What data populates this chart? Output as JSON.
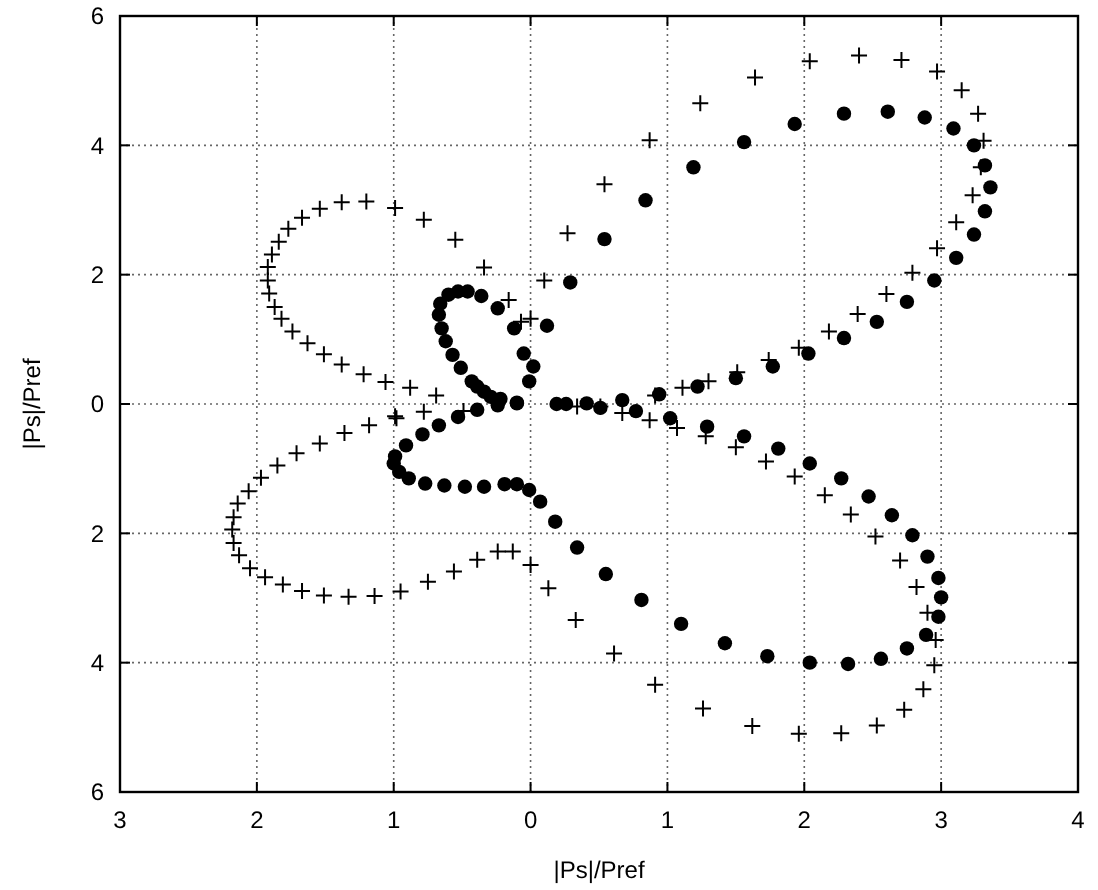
{
  "chart_data": {
    "type": "scatter",
    "xlabel": "|Ps|/Pref",
    "ylabel": "|Ps|/Pref",
    "xlim": [
      -3,
      4
    ],
    "ylim": [
      -6,
      6
    ],
    "xticks": [
      {
        "value": -3,
        "label": "3"
      },
      {
        "value": -2,
        "label": "2"
      },
      {
        "value": -1,
        "label": "1"
      },
      0,
      1,
      2,
      3,
      4
    ],
    "yticks": [
      {
        "value": -6,
        "label": "6"
      },
      {
        "value": -4,
        "label": "4"
      },
      {
        "value": -2,
        "label": "2"
      },
      0,
      2,
      4,
      6
    ],
    "grid": true,
    "series": [
      {
        "color": "#000000",
        "marker": "cross",
        "x": [
          -0.49,
          -0.69,
          -0.88,
          -1.06,
          -1.22,
          -1.38,
          -1.51,
          -1.63,
          -1.74,
          -1.82,
          -1.87,
          -1.91,
          -1.92,
          -1.92,
          -1.89,
          -1.84,
          -1.77,
          -1.67,
          -1.54,
          -1.38,
          -1.2,
          -0.99,
          -0.78,
          -0.55,
          -0.34,
          -0.16,
          0,
          0.1,
          -0.99,
          -0.78,
          -0.98,
          -1.18,
          -1.36,
          -1.54,
          -1.71,
          -1.85,
          -1.97,
          -2.06,
          -2.14,
          -2.17,
          -2.18,
          -2.17,
          -2.13,
          -2.05,
          -1.94,
          -1.81,
          -1.67,
          -1.51,
          -1.33,
          -1.14,
          -0.95,
          -0.75,
          -0.56,
          -0.39,
          -0.24,
          -0.13,
          0,
          0.13,
          -0.07,
          0.27,
          0.54,
          0.87,
          1.24,
          1.64,
          2.04,
          2.4,
          2.71,
          2.97,
          3.15,
          3.27,
          3.31,
          3.29,
          3.23,
          3.11,
          2.97,
          2.79,
          2.6,
          2.39,
          2.18,
          1.96,
          1.74,
          1.51,
          1.3,
          1.11,
          0.91,
          0.34,
          0.51,
          0.67,
          0.87,
          1.07,
          1.28,
          1.5,
          1.72,
          1.93,
          2.15,
          2.34,
          2.52,
          2.7,
          2.82,
          2.9,
          2.96,
          2.95,
          2.87,
          2.73,
          2.53,
          2.27,
          1.96,
          1.62,
          1.26,
          0.91,
          0.61,
          0.33
        ],
        "values": [
          -0.11,
          0.13,
          0.25,
          0.34,
          0.46,
          0.61,
          0.77,
          0.94,
          1.12,
          1.32,
          1.5,
          1.71,
          1.91,
          2.12,
          2.31,
          2.51,
          2.71,
          2.88,
          3.02,
          3.12,
          3.13,
          3.03,
          2.85,
          2.54,
          2.11,
          1.61,
          1.32,
          1.91,
          -0.19,
          -0.12,
          -0.22,
          -0.33,
          -0.45,
          -0.61,
          -0.76,
          -0.95,
          -1.14,
          -1.35,
          -1.54,
          -1.75,
          -1.94,
          -2.15,
          -2.34,
          -2.54,
          -2.68,
          -2.79,
          -2.89,
          -2.96,
          -2.98,
          -2.97,
          -2.9,
          -2.75,
          -2.59,
          -2.41,
          -2.28,
          -2.28,
          -2.49,
          -2.85,
          1.27,
          2.64,
          3.4,
          4.08,
          4.65,
          5.05,
          5.3,
          5.39,
          5.32,
          5.14,
          4.85,
          4.49,
          4.07,
          3.66,
          3.23,
          2.81,
          2.41,
          2.03,
          1.7,
          1.39,
          1.12,
          0.87,
          0.68,
          0.49,
          0.35,
          0.25,
          0.13,
          -0.04,
          -0.04,
          -0.14,
          -0.25,
          -0.37,
          -0.5,
          -0.67,
          -0.89,
          -1.12,
          -1.41,
          -1.71,
          -2.05,
          -2.42,
          -2.83,
          -3.23,
          -3.65,
          -4.04,
          -4.41,
          -4.73,
          -4.97,
          -5.09,
          -5.1,
          -4.98,
          -4.71,
          -4.34,
          -3.86,
          -3.34
        ]
      },
      {
        "color": "#000000",
        "marker": "circle",
        "x": [
          -0.1,
          -0.22,
          -0.29,
          -0.34,
          -0.39,
          -0.43,
          -0.51,
          -0.57,
          -0.62,
          -0.65,
          -0.67,
          -0.66,
          -0.6,
          -0.53,
          -0.46,
          -0.36,
          -0.24,
          -0.12,
          -0.05,
          0.02,
          -0.01,
          0.12,
          -0.1,
          -0.24,
          -0.39,
          -0.53,
          -0.67,
          -0.79,
          -0.91,
          -0.99,
          -1,
          -0.96,
          -0.89,
          -0.77,
          -0.63,
          -0.48,
          -0.34,
          -0.19,
          -0.1,
          -0.01,
          0.07,
          0.29,
          0.54,
          0.84,
          1.19,
          1.56,
          1.93,
          2.29,
          2.61,
          2.88,
          3.09,
          3.24,
          3.32,
          3.36,
          3.32,
          3.24,
          3.11,
          2.95,
          2.75,
          2.53,
          2.29,
          2.03,
          1.77,
          1.5,
          1.22,
          0.94,
          0.67,
          0.41,
          0.26,
          0.19,
          0.51,
          0.77,
          1.02,
          1.29,
          1.56,
          1.81,
          2.04,
          2.27,
          2.47,
          2.64,
          2.79,
          2.9,
          2.98,
          3,
          2.98,
          2.89,
          2.75,
          2.56,
          2.32,
          2.04,
          1.73,
          1.42,
          1.1,
          0.81,
          0.55,
          0.34,
          0.18
        ],
        "values": [
          0.02,
          0.08,
          0.11,
          0.19,
          0.27,
          0.35,
          0.56,
          0.76,
          0.97,
          1.17,
          1.38,
          1.55,
          1.69,
          1.74,
          1.74,
          1.67,
          1.48,
          1.17,
          0.78,
          0.58,
          0.35,
          1.21,
          0.01,
          -0.02,
          -0.09,
          -0.2,
          -0.33,
          -0.47,
          -0.64,
          -0.81,
          -0.92,
          -1.05,
          -1.15,
          -1.23,
          -1.26,
          -1.28,
          -1.28,
          -1.24,
          -1.24,
          -1.33,
          -1.51,
          1.88,
          2.55,
          3.15,
          3.66,
          4.05,
          4.33,
          4.49,
          4.52,
          4.43,
          4.26,
          4,
          3.69,
          3.35,
          2.98,
          2.62,
          2.26,
          1.91,
          1.58,
          1.27,
          1.02,
          0.78,
          0.58,
          0.4,
          0.27,
          0.15,
          0.06,
          0.01,
          0,
          0,
          -0.06,
          -0.11,
          -0.22,
          -0.35,
          -0.5,
          -0.69,
          -0.92,
          -1.15,
          -1.43,
          -1.72,
          -2.03,
          -2.36,
          -2.69,
          -2.99,
          -3.29,
          -3.57,
          -3.78,
          -3.94,
          -4.02,
          -4,
          -3.9,
          -3.7,
          -3.4,
          -3.03,
          -2.63,
          -2.22,
          -1.82
        ]
      }
    ]
  }
}
